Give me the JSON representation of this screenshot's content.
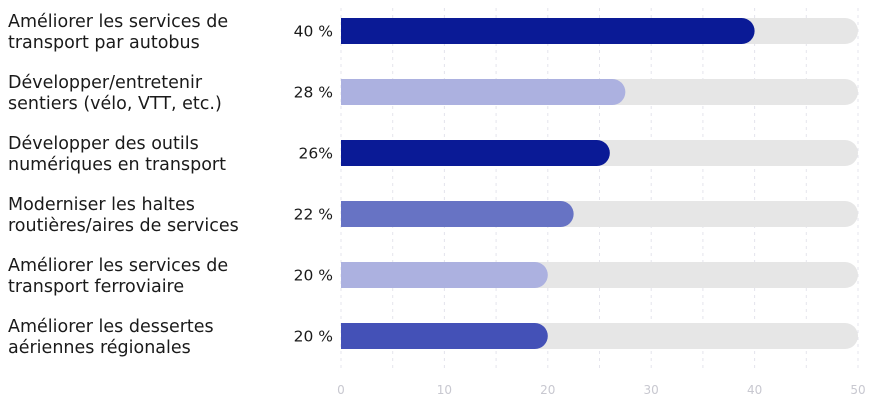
{
  "chart_data": {
    "type": "bar",
    "orientation": "horizontal",
    "title": "",
    "xlabel": "",
    "ylabel": "",
    "xlim": [
      0,
      50
    ],
    "xticks": [
      0,
      10,
      20,
      30,
      40,
      50
    ],
    "grid": true,
    "categories": [
      [
        "Améliorer les services de",
        "transport par autobus"
      ],
      [
        "Développer/entretenir",
        "sentiers (vélo, VTT, etc.)"
      ],
      [
        "Développer des outils",
        "numériques en transport"
      ],
      [
        "Moderniser les haltes",
        "routières/aires de services"
      ],
      [
        "Améliorer les services de",
        "transport ferroviaire"
      ],
      [
        "Améliorer les dessertes",
        "aériennes régionales"
      ]
    ],
    "values": [
      40,
      27.5,
      26,
      22.5,
      20,
      20
    ],
    "value_labels": [
      "40 %",
      "28 %",
      "26%",
      "22 %",
      "20 %",
      "20 %"
    ],
    "bar_colors": [
      "#0a1a96",
      "#acb1e0",
      "#0a1a96",
      "#6773c4",
      "#acb1e0",
      "#4451b7"
    ],
    "track_color": "#e6e6e6"
  }
}
